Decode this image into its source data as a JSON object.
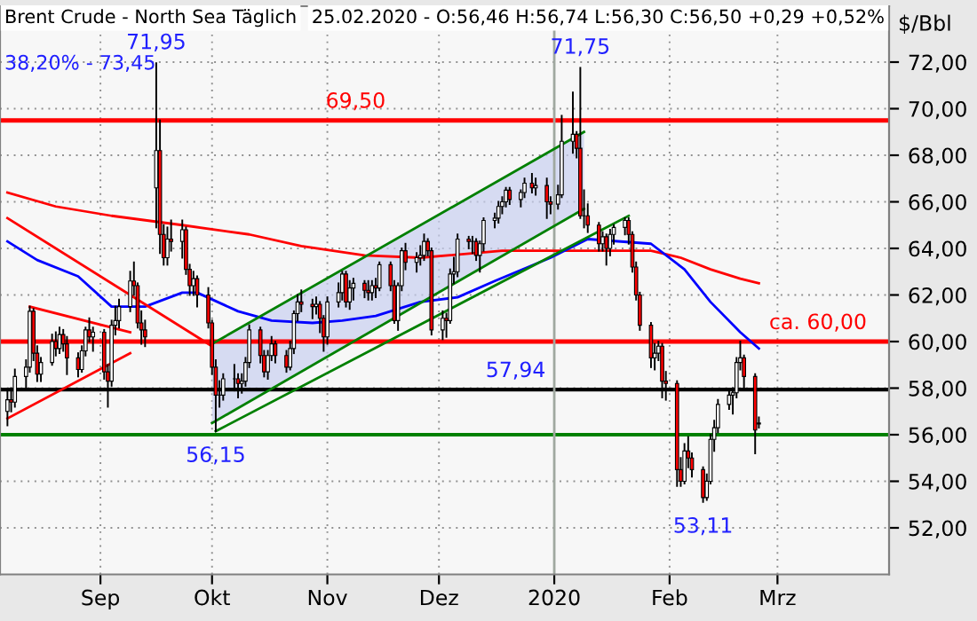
{
  "chart_data": {
    "type": "candlestick",
    "title": "Brent Crude - North Sea Täglich",
    "subtitle": "25.02.2020 - O:56,46 H:56,74 L:56,30 C:56,50 +0,29 +0,52%",
    "ylabel": "$/Bbl",
    "x": [
      "2019-08-07",
      "2019-08-08",
      "2019-08-09",
      "2019-08-12",
      "2019-08-13",
      "2019-08-14",
      "2019-08-15",
      "2019-08-16",
      "2019-08-19",
      "2019-08-20",
      "2019-08-21",
      "2019-08-22",
      "2019-08-23",
      "2019-08-26",
      "2019-08-27",
      "2019-08-28",
      "2019-08-29",
      "2019-08-30",
      "2019-09-02",
      "2019-09-03",
      "2019-09-04",
      "2019-09-05",
      "2019-09-06",
      "2019-09-09",
      "2019-09-10",
      "2019-09-11",
      "2019-09-12",
      "2019-09-13",
      "2019-09-16",
      "2019-09-17",
      "2019-09-18",
      "2019-09-19",
      "2019-09-20",
      "2019-09-23",
      "2019-09-24",
      "2019-09-25",
      "2019-09-26",
      "2019-09-27",
      "2019-09-30",
      "2019-10-01",
      "2019-10-02",
      "2019-10-03",
      "2019-10-04",
      "2019-10-07",
      "2019-10-08",
      "2019-10-09",
      "2019-10-10",
      "2019-10-11",
      "2019-10-14",
      "2019-10-15",
      "2019-10-16",
      "2019-10-17",
      "2019-10-18",
      "2019-10-21",
      "2019-10-22",
      "2019-10-23",
      "2019-10-24",
      "2019-10-25",
      "2019-10-28",
      "2019-10-29",
      "2019-10-30",
      "2019-10-31",
      "2019-11-01",
      "2019-11-04",
      "2019-11-05",
      "2019-11-06",
      "2019-11-07",
      "2019-11-08",
      "2019-11-11",
      "2019-11-12",
      "2019-11-13",
      "2019-11-14",
      "2019-11-15",
      "2019-11-18",
      "2019-11-19",
      "2019-11-20",
      "2019-11-21",
      "2019-11-22",
      "2019-11-25",
      "2019-11-26",
      "2019-11-27",
      "2019-11-28",
      "2019-11-29",
      "2019-12-02",
      "2019-12-03",
      "2019-12-04",
      "2019-12-05",
      "2019-12-06",
      "2019-12-09",
      "2019-12-10",
      "2019-12-11",
      "2019-12-12",
      "2019-12-13",
      "2019-12-16",
      "2019-12-17",
      "2019-12-18",
      "2019-12-19",
      "2019-12-20",
      "2019-12-23",
      "2019-12-24",
      "2019-12-26",
      "2019-12-27",
      "2019-12-30",
      "2019-12-31",
      "2020-01-02",
      "2020-01-03",
      "2020-01-06",
      "2020-01-07",
      "2020-01-08",
      "2020-01-09",
      "2020-01-10",
      "2020-01-13",
      "2020-01-14",
      "2020-01-15",
      "2020-01-16",
      "2020-01-17",
      "2020-01-20",
      "2020-01-21",
      "2020-01-22",
      "2020-01-23",
      "2020-01-24",
      "2020-01-27",
      "2020-01-28",
      "2020-01-29",
      "2020-01-30",
      "2020-01-31",
      "2020-02-03",
      "2020-02-04",
      "2020-02-05",
      "2020-02-06",
      "2020-02-07",
      "2020-02-10",
      "2020-02-11",
      "2020-02-12",
      "2020-02-13",
      "2020-02-14",
      "2020-02-17",
      "2020-02-18",
      "2020-02-19",
      "2020-02-20",
      "2020-02-21",
      "2020-02-24",
      "2020-02-25"
    ],
    "ohlc": [
      [
        57.0,
        57.9,
        56.4,
        57.5
      ],
      [
        57.5,
        58.0,
        57.0,
        57.4
      ],
      [
        57.4,
        58.8,
        57.2,
        58.5
      ],
      [
        58.5,
        59.2,
        58.0,
        58.9
      ],
      [
        58.9,
        61.5,
        58.7,
        61.3
      ],
      [
        61.3,
        61.4,
        59.2,
        59.5
      ],
      [
        59.5,
        59.8,
        58.3,
        58.6
      ],
      [
        58.6,
        59.3,
        58.3,
        59.1
      ],
      [
        59.1,
        60.3,
        59.0,
        60.0
      ],
      [
        60.0,
        60.4,
        59.4,
        59.7
      ],
      [
        59.7,
        60.6,
        59.5,
        60.3
      ],
      [
        60.3,
        60.5,
        59.6,
        59.9
      ],
      [
        59.9,
        60.2,
        58.6,
        59.3
      ],
      [
        59.3,
        59.5,
        58.5,
        58.8
      ],
      [
        58.8,
        59.8,
        58.7,
        59.6
      ],
      [
        59.6,
        60.6,
        59.4,
        60.5
      ],
      [
        60.5,
        61.0,
        60.0,
        60.2
      ],
      [
        60.2,
        60.6,
        59.6,
        60.4
      ],
      [
        60.4,
        60.5,
        58.4,
        58.7
      ],
      [
        58.7,
        59.0,
        57.2,
        58.3
      ],
      [
        58.3,
        60.9,
        58.1,
        60.7
      ],
      [
        60.7,
        61.5,
        60.3,
        60.9
      ],
      [
        60.9,
        61.8,
        60.6,
        61.5
      ],
      [
        61.5,
        63.0,
        61.3,
        62.6
      ],
      [
        62.6,
        63.4,
        62.0,
        62.4
      ],
      [
        62.4,
        62.5,
        60.6,
        60.8
      ],
      [
        60.8,
        61.3,
        59.9,
        60.5
      ],
      [
        60.5,
        60.9,
        59.8,
        60.2
      ],
      [
        66.6,
        71.95,
        64.9,
        68.2
      ],
      [
        68.2,
        69.5,
        63.8,
        64.6
      ],
      [
        64.6,
        65.0,
        63.3,
        63.6
      ],
      [
        63.6,
        64.9,
        63.3,
        64.4
      ],
      [
        64.4,
        65.2,
        63.9,
        64.3
      ],
      [
        64.3,
        65.2,
        63.6,
        64.8
      ],
      [
        64.8,
        64.9,
        62.9,
        63.1
      ],
      [
        63.1,
        63.3,
        62.0,
        62.4
      ],
      [
        62.4,
        63.0,
        62.0,
        62.7
      ],
      [
        62.7,
        62.8,
        61.5,
        62.0
      ],
      [
        62.0,
        62.3,
        60.6,
        60.8
      ],
      [
        60.8,
        60.9,
        58.6,
        58.9
      ],
      [
        58.9,
        59.2,
        56.15,
        57.7
      ],
      [
        57.7,
        58.3,
        57.2,
        57.7
      ],
      [
        57.7,
        58.6,
        57.5,
        58.4
      ],
      [
        58.4,
        59.0,
        57.9,
        58.4
      ],
      [
        58.4,
        58.6,
        57.6,
        58.2
      ],
      [
        58.2,
        58.6,
        57.8,
        58.3
      ],
      [
        58.3,
        59.3,
        58.1,
        59.1
      ],
      [
        59.1,
        60.7,
        58.9,
        60.5
      ],
      [
        60.5,
        60.6,
        59.1,
        59.4
      ],
      [
        59.4,
        59.6,
        58.5,
        58.7
      ],
      [
        58.7,
        59.6,
        58.4,
        59.4
      ],
      [
        59.4,
        60.2,
        59.2,
        59.9
      ],
      [
        59.9,
        60.0,
        59.1,
        59.4
      ],
      [
        59.4,
        59.6,
        58.7,
        58.9
      ],
      [
        58.9,
        60.0,
        58.8,
        59.7
      ],
      [
        59.7,
        61.3,
        59.5,
        61.2
      ],
      [
        61.2,
        62.0,
        60.9,
        61.7
      ],
      [
        61.7,
        62.2,
        61.3,
        61.6
      ],
      [
        61.6,
        61.8,
        61.0,
        61.5
      ],
      [
        61.5,
        61.9,
        61.2,
        61.6
      ],
      [
        61.6,
        61.7,
        60.4,
        61.0
      ],
      [
        61.0,
        61.1,
        59.6,
        60.2
      ],
      [
        60.2,
        61.9,
        59.9,
        61.7
      ],
      [
        61.7,
        62.5,
        61.5,
        62.1
      ],
      [
        62.1,
        63.0,
        61.8,
        62.9
      ],
      [
        62.9,
        63.0,
        61.5,
        61.7
      ],
      [
        61.7,
        62.6,
        61.4,
        62.3
      ],
      [
        62.3,
        62.7,
        61.8,
        62.5
      ],
      [
        62.5,
        62.6,
        61.9,
        62.2
      ],
      [
        62.2,
        62.6,
        61.8,
        62.1
      ],
      [
        62.1,
        62.6,
        61.8,
        62.4
      ],
      [
        62.4,
        62.7,
        61.9,
        62.3
      ],
      [
        62.3,
        63.4,
        62.2,
        63.3
      ],
      [
        63.3,
        63.4,
        62.2,
        62.4
      ],
      [
        62.4,
        62.6,
        60.8,
        60.9
      ],
      [
        60.9,
        62.5,
        60.5,
        62.4
      ],
      [
        62.4,
        64.0,
        62.2,
        63.9
      ],
      [
        63.9,
        64.2,
        63.1,
        63.4
      ],
      [
        63.4,
        63.8,
        63.0,
        63.6
      ],
      [
        63.6,
        64.1,
        63.3,
        63.7
      ],
      [
        63.7,
        64.6,
        63.5,
        64.3
      ],
      [
        64.3,
        64.4,
        63.7,
        63.9
      ],
      [
        63.9,
        64.0,
        60.3,
        60.5
      ],
      [
        60.5,
        61.3,
        60.1,
        61.0
      ],
      [
        61.0,
        61.2,
        60.2,
        60.9
      ],
      [
        60.9,
        63.1,
        60.8,
        62.9
      ],
      [
        62.9,
        63.6,
        62.5,
        63.0
      ],
      [
        63.0,
        64.6,
        62.8,
        64.4
      ],
      [
        64.4,
        64.5,
        64.0,
        64.3
      ],
      [
        64.3,
        64.5,
        63.8,
        64.3
      ],
      [
        64.3,
        64.4,
        63.5,
        63.7
      ],
      [
        63.7,
        64.3,
        63.0,
        64.2
      ],
      [
        64.2,
        65.3,
        63.9,
        65.2
      ],
      [
        65.2,
        65.5,
        64.9,
        65.3
      ],
      [
        65.3,
        66.0,
        65.1,
        65.8
      ],
      [
        65.8,
        66.2,
        65.5,
        66.0
      ],
      [
        66.0,
        66.6,
        65.8,
        66.5
      ],
      [
        66.5,
        66.6,
        65.9,
        66.1
      ],
      [
        66.1,
        66.5,
        65.8,
        66.4
      ],
      [
        66.4,
        67.0,
        66.2,
        66.8
      ],
      [
        66.8,
        67.2,
        66.4,
        66.6
      ],
      [
        66.6,
        67.0,
        66.3,
        66.7
      ],
      [
        66.7,
        67.0,
        65.3,
        66.0
      ],
      [
        66.0,
        66.2,
        65.5,
        65.9
      ],
      [
        65.9,
        66.7,
        65.7,
        66.3
      ],
      [
        66.3,
        69.7,
        66.2,
        68.6
      ],
      [
        68.6,
        70.7,
        68.1,
        68.9
      ],
      [
        68.9,
        69.0,
        67.9,
        68.3
      ],
      [
        68.3,
        71.75,
        65.3,
        65.4
      ],
      [
        65.4,
        66.5,
        64.9,
        65.4
      ],
      [
        65.4,
        65.9,
        64.7,
        65.0
      ],
      [
        65.0,
        65.1,
        63.9,
        64.2
      ],
      [
        64.2,
        64.7,
        63.9,
        64.5
      ],
      [
        64.5,
        64.6,
        63.3,
        64.0
      ],
      [
        64.0,
        64.8,
        63.7,
        64.6
      ],
      [
        64.6,
        65.0,
        64.2,
        64.9
      ],
      [
        64.9,
        65.3,
        64.6,
        65.2
      ],
      [
        65.2,
        65.3,
        64.2,
        64.6
      ],
      [
        64.6,
        64.7,
        63.0,
        63.2
      ],
      [
        63.2,
        63.4,
        61.8,
        62.0
      ],
      [
        62.0,
        62.1,
        60.5,
        60.7
      ],
      [
        60.7,
        60.8,
        58.9,
        59.3
      ],
      [
        59.3,
        59.9,
        58.8,
        59.5
      ],
      [
        59.5,
        60.0,
        59.2,
        59.8
      ],
      [
        59.8,
        59.9,
        57.6,
        58.3
      ],
      [
        58.3,
        58.7,
        57.5,
        58.2
      ],
      [
        58.2,
        58.3,
        53.8,
        54.5
      ],
      [
        54.5,
        55.0,
        53.8,
        54.0
      ],
      [
        54.0,
        55.6,
        53.9,
        55.3
      ],
      [
        55.3,
        55.9,
        54.6,
        55.0
      ],
      [
        55.0,
        55.2,
        54.2,
        54.5
      ],
      [
        54.5,
        54.6,
        53.11,
        53.3
      ],
      [
        53.3,
        54.3,
        53.2,
        54.0
      ],
      [
        54.0,
        56.0,
        53.9,
        55.8
      ],
      [
        55.8,
        56.6,
        55.3,
        56.3
      ],
      [
        56.3,
        57.5,
        56.1,
        57.3
      ],
      [
        57.3,
        57.9,
        57.1,
        57.7
      ],
      [
        57.7,
        58.0,
        56.9,
        57.8
      ],
      [
        57.8,
        59.3,
        57.6,
        59.1
      ],
      [
        59.1,
        60.0,
        58.8,
        59.3
      ],
      [
        59.3,
        59.4,
        58.0,
        58.5
      ],
      [
        58.5,
        58.6,
        55.2,
        56.2
      ],
      [
        56.46,
        56.74,
        56.3,
        56.5
      ]
    ],
    "series": [
      {
        "type": "line",
        "color": "#ff0000",
        "x": [
          "2019-08-07",
          "2019-08-20",
          "2019-09-04",
          "2019-09-23",
          "2019-10-11",
          "2019-10-25",
          "2019-11-11",
          "2019-11-26",
          "2019-12-18",
          "2020-01-02",
          "2020-01-27",
          "2020-02-04",
          "2020-02-12",
          "2020-02-20",
          "2020-02-25"
        ],
        "values": [
          66.4,
          65.8,
          65.4,
          65.0,
          64.6,
          64.1,
          63.7,
          63.6,
          63.9,
          63.9,
          63.9,
          63.6,
          63.1,
          62.7,
          62.5
        ]
      },
      {
        "type": "line",
        "color": "#0000ff",
        "x": [
          "2019-08-07",
          "2019-08-15",
          "2019-08-26",
          "2019-09-04",
          "2019-09-13",
          "2019-09-23",
          "2019-09-27",
          "2019-10-08",
          "2019-10-17",
          "2019-10-28",
          "2019-11-05",
          "2019-11-14",
          "2019-11-26",
          "2019-12-06",
          "2019-12-16",
          "2019-12-31",
          "2020-01-10",
          "2020-01-27",
          "2020-02-05",
          "2020-02-12",
          "2020-02-20",
          "2020-02-25"
        ],
        "values": [
          64.3,
          63.5,
          62.8,
          61.5,
          61.5,
          62.1,
          62.1,
          61.3,
          60.9,
          60.8,
          60.9,
          61.1,
          61.7,
          61.9,
          62.6,
          63.6,
          64.4,
          64.2,
          63.1,
          61.7,
          60.4,
          59.7
        ]
      },
      {
        "type": "line",
        "color": "#ff0000",
        "x": [
          "2019-08-07",
          "2019-10-01"
        ],
        "values": [
          65.3,
          59.8
        ]
      },
      {
        "type": "line",
        "color": "#ff0000",
        "x": [
          "2019-08-13",
          "2019-09-09"
        ],
        "values": [
          61.5,
          60.4
        ]
      },
      {
        "type": "line",
        "color": "#ff0000",
        "x": [
          "2019-08-07",
          "2019-09-09"
        ],
        "values": [
          56.7,
          59.5
        ]
      },
      {
        "type": "line",
        "color": "#008000",
        "x": [
          "2019-10-01",
          "2020-01-09"
        ],
        "values": [
          59.9,
          69.0
        ],
        "lower": [
          56.5,
          65.7
        ],
        "upper": [
          59.9,
          69.0
        ]
      },
      {
        "type": "line",
        "color": "#008000",
        "x": [
          "2019-10-01",
          "2020-01-09"
        ],
        "values": [
          56.5,
          65.7
        ]
      },
      {
        "type": "line",
        "color": "#008000",
        "x": [
          "2019-10-02",
          "2020-01-21"
        ],
        "values": [
          56.15,
          65.4
        ]
      }
    ],
    "ylim": [
      50.0,
      74.4
    ],
    "yticks": [
      {
        "value": 52,
        "label": "52,00"
      },
      {
        "value": 54,
        "label": "54,00"
      },
      {
        "value": 56,
        "label": "56,00"
      },
      {
        "value": 58,
        "label": "58,00"
      },
      {
        "value": 60,
        "label": "60,00"
      },
      {
        "value": 62,
        "label": "62,00"
      },
      {
        "value": 64,
        "label": "64,00"
      },
      {
        "value": 66,
        "label": "66,00"
      },
      {
        "value": 68,
        "label": "68,00"
      },
      {
        "value": 70,
        "label": "70,00"
      },
      {
        "value": 72,
        "label": "72,00"
      }
    ],
    "xlim": [
      "2019-08-05",
      "2020-03-31"
    ],
    "xticks": [
      {
        "value": "2019-09-01",
        "label": "Sep"
      },
      {
        "value": "2019-10-01",
        "label": "Okt"
      },
      {
        "value": "2019-11-01",
        "label": "Nov"
      },
      {
        "value": "2019-12-01",
        "label": "Dez"
      },
      {
        "value": "2020-01-01",
        "label": "2020"
      },
      {
        "value": "2020-02-01",
        "label": "Feb"
      },
      {
        "value": "2020-03-01",
        "label": "Mrz"
      }
    ],
    "ref_lines": [
      {
        "axis": "y",
        "value": 69.5,
        "label": "69,50",
        "color": "#ff0000"
      },
      {
        "axis": "y",
        "value": 60.0,
        "label": "ca. 60,00",
        "color": "#ff0000"
      },
      {
        "axis": "y",
        "value": 57.94,
        "label": "57,94",
        "color": "#000000"
      },
      {
        "axis": "y",
        "value": 56.0,
        "color": "#008000"
      },
      {
        "axis": "x",
        "value": "2020-01-01",
        "color": "#a0a8a0"
      }
    ],
    "annotations": [
      "38,20% - 73,45",
      {
        "text": "71,95",
        "x": "2019-09-16",
        "y": 71.95
      },
      {
        "text": "71,75",
        "x": "2020-01-08",
        "y": 71.75
      },
      {
        "text": "56,15",
        "x": "2019-10-02",
        "y": 56.15
      },
      {
        "text": "53,11",
        "x": "2020-02-10",
        "y": 53.11
      }
    ],
    "grid": true,
    "legend": false
  }
}
